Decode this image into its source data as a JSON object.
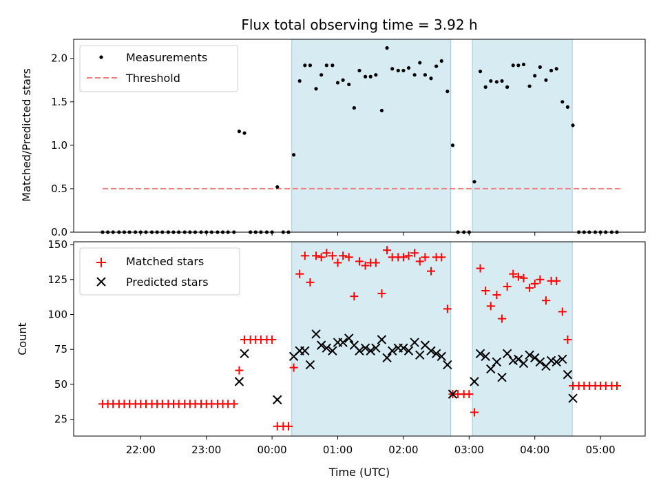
{
  "chart_data": [
    {
      "type": "scatter",
      "title": "Flux total observing time = 3.92 h",
      "xlabel": "",
      "ylabel": "Matched/Predicted stars",
      "ylim": [
        0,
        2.22
      ],
      "yticks": [
        "0.0",
        "0.5",
        "1.0",
        "1.5",
        "2.0"
      ],
      "xlim_hours": [
        20.98,
        29.68
      ],
      "legend_position": "top-left",
      "shaded_intervals": [
        [
          24.3,
          26.72
        ],
        [
          27.05,
          28.57
        ]
      ],
      "series": [
        {
          "name": "Measurements",
          "style": "black-dot",
          "x": [
            21.42,
            21.5,
            21.58,
            21.67,
            21.75,
            21.83,
            21.92,
            22.0,
            22.08,
            22.17,
            22.25,
            22.33,
            22.42,
            22.5,
            22.58,
            22.67,
            22.75,
            22.83,
            22.92,
            23.0,
            23.08,
            23.17,
            23.25,
            23.33,
            23.42,
            23.5,
            23.58,
            23.67,
            23.75,
            23.83,
            23.92,
            24.0,
            24.08,
            24.17,
            24.25,
            24.33,
            24.42,
            24.5,
            24.58,
            24.67,
            24.75,
            24.83,
            24.92,
            25.0,
            25.08,
            25.17,
            25.25,
            25.33,
            25.42,
            25.5,
            25.58,
            25.67,
            25.75,
            25.83,
            25.92,
            26.0,
            26.08,
            26.17,
            26.25,
            26.33,
            26.42,
            26.5,
            26.58,
            26.67,
            26.75,
            26.83,
            26.92,
            27.0,
            27.08,
            27.17,
            27.25,
            27.33,
            27.42,
            27.5,
            27.58,
            27.67,
            27.75,
            27.83,
            27.92,
            28.0,
            28.08,
            28.17,
            28.25,
            28.33,
            28.42,
            28.5,
            28.58,
            28.67,
            28.75,
            28.83,
            28.92,
            29.0,
            29.08,
            29.17,
            29.25
          ],
          "y": [
            0,
            0,
            0,
            0,
            0,
            0,
            0,
            0,
            0,
            0,
            0,
            0,
            0,
            0,
            0,
            0,
            0,
            0,
            0,
            0,
            0,
            0,
            0,
            0,
            0,
            1.16,
            1.14,
            0,
            0,
            0,
            0,
            0,
            0.52,
            0,
            0,
            0.89,
            1.74,
            1.92,
            1.92,
            1.65,
            1.81,
            1.92,
            1.92,
            1.72,
            1.75,
            1.7,
            1.43,
            1.86,
            1.79,
            1.79,
            1.81,
            1.4,
            2.12,
            1.88,
            1.86,
            1.86,
            1.89,
            1.81,
            1.95,
            1.81,
            1.77,
            1.91,
            1.97,
            1.62,
            1.0,
            0,
            0,
            0,
            0.58,
            1.85,
            1.67,
            1.74,
            1.73,
            1.74,
            1.67,
            1.92,
            1.92,
            1.93,
            1.68,
            1.8,
            1.9,
            1.75,
            1.86,
            1.88,
            1.5,
            1.44,
            1.23,
            0,
            0,
            0,
            0,
            0,
            0,
            0,
            0
          ]
        },
        {
          "name": "Threshold",
          "style": "red-dashed",
          "x": [
            21.42,
            29.3
          ],
          "y": [
            0.5,
            0.5
          ]
        }
      ]
    },
    {
      "type": "scatter",
      "xlabel": "Time (UTC)",
      "ylabel": "Count",
      "ylim": [
        13,
        152
      ],
      "yticks": [
        "25",
        "50",
        "75",
        "100",
        "125",
        "150"
      ],
      "xticks": [
        "22:00",
        "23:00",
        "00:00",
        "01:00",
        "02:00",
        "03:00",
        "04:00",
        "05:00"
      ],
      "xlim_hours": [
        20.98,
        29.68
      ],
      "legend_position": "top-left",
      "shaded_intervals": [
        [
          24.3,
          26.72
        ],
        [
          27.05,
          28.57
        ]
      ],
      "series": [
        {
          "name": "Matched stars",
          "style": "red-plus",
          "x": [
            21.42,
            21.5,
            21.58,
            21.67,
            21.75,
            21.83,
            21.92,
            22.0,
            22.08,
            22.17,
            22.25,
            22.33,
            22.42,
            22.5,
            22.58,
            22.67,
            22.75,
            22.83,
            22.92,
            23.0,
            23.08,
            23.17,
            23.25,
            23.33,
            23.42,
            23.5,
            23.58,
            23.67,
            23.75,
            23.83,
            23.92,
            24.0,
            24.08,
            24.17,
            24.25,
            24.33,
            24.42,
            24.5,
            24.58,
            24.67,
            24.75,
            24.83,
            24.92,
            25.0,
            25.08,
            25.17,
            25.25,
            25.33,
            25.42,
            25.5,
            25.58,
            25.67,
            25.75,
            25.83,
            25.92,
            26.0,
            26.08,
            26.17,
            26.25,
            26.33,
            26.42,
            26.5,
            26.58,
            26.67,
            26.75,
            26.83,
            26.92,
            27.0,
            27.08,
            27.17,
            27.25,
            27.33,
            27.42,
            27.5,
            27.58,
            27.67,
            27.75,
            27.83,
            27.92,
            28.0,
            28.08,
            28.17,
            28.25,
            28.33,
            28.42,
            28.5,
            28.58,
            28.67,
            28.75,
            28.83,
            28.92,
            29.0,
            29.08,
            29.17,
            29.25
          ],
          "y": [
            36,
            36,
            36,
            36,
            36,
            36,
            36,
            36,
            36,
            36,
            36,
            36,
            36,
            36,
            36,
            36,
            36,
            36,
            36,
            36,
            36,
            36,
            36,
            36,
            36,
            60,
            82,
            82,
            82,
            82,
            82,
            82,
            20,
            20,
            20,
            62,
            129,
            142,
            123,
            142,
            141,
            144,
            142,
            137,
            142,
            141,
            113,
            138,
            135,
            137,
            137,
            115,
            146,
            141,
            141,
            141,
            142,
            144,
            138,
            141,
            131,
            141,
            141,
            104,
            43,
            43,
            43,
            43,
            30,
            133,
            117,
            106,
            114,
            97,
            120,
            129,
            127,
            126,
            119,
            122,
            125,
            110,
            124,
            124,
            102,
            82,
            49,
            49,
            49,
            49,
            49,
            49,
            49,
            49,
            49
          ]
        },
        {
          "name": "Predicted stars",
          "style": "black-x",
          "x": [
            23.5,
            23.58,
            24.08,
            24.33,
            24.42,
            24.5,
            24.58,
            24.67,
            24.75,
            24.83,
            24.92,
            25.0,
            25.08,
            25.17,
            25.25,
            25.33,
            25.42,
            25.5,
            25.58,
            25.67,
            25.75,
            25.83,
            25.92,
            26.0,
            26.08,
            26.17,
            26.25,
            26.33,
            26.42,
            26.5,
            26.58,
            26.67,
            26.75,
            27.08,
            27.17,
            27.25,
            27.33,
            27.42,
            27.5,
            27.58,
            27.67,
            27.75,
            27.83,
            27.92,
            28.0,
            28.08,
            28.17,
            28.25,
            28.33,
            28.42,
            28.5,
            28.58
          ],
          "y": [
            52,
            72,
            39,
            70,
            74,
            74,
            64,
            86,
            78,
            76,
            74,
            80,
            80,
            83,
            78,
            74,
            76,
            74,
            76,
            82,
            69,
            74,
            76,
            76,
            74,
            80,
            71,
            78,
            74,
            72,
            70,
            64,
            43,
            52,
            72,
            70,
            61,
            66,
            55,
            72,
            67,
            68,
            65,
            71,
            69,
            66,
            63,
            67,
            66,
            68,
            57,
            40
          ]
        }
      ]
    }
  ]
}
